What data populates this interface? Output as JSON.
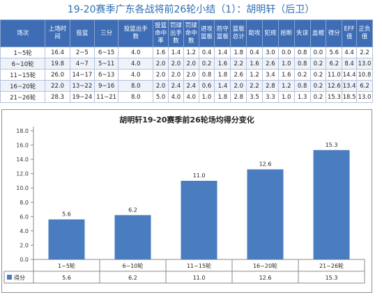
{
  "page_title": "19-20赛季广东各战将前26轮小结（1）：胡明轩（后卫）",
  "table": {
    "headers": [
      "场次",
      "上场时间",
      "投篮",
      "三分",
      "投篮出手数",
      "投篮命中率",
      "罚球出手数",
      "罚球命中数",
      "进攻篮板",
      "防守篮板",
      "篮板总计",
      "助攻",
      "犯规",
      "抢断",
      "失误",
      "盖帽",
      "得分",
      "EFF值",
      "正负值"
    ],
    "header_display": [
      "场次",
      "上场时\n间",
      "投篮",
      "三分",
      "投篮出手\n数",
      "投篮\n命中\n率",
      "罚球\n出手\n数",
      "罚球\n命中\n数",
      "进攻\n篮板",
      "防守\n篮板",
      "篮板\n总计",
      "助攻",
      "犯规",
      "抢断",
      "失误",
      "盖帽",
      "得分",
      "EFF\n值",
      "正负\n值"
    ],
    "rows": [
      [
        "1~5轮",
        "16.4",
        "2~5",
        "6~15",
        "4.0",
        "1.6",
        "1.4",
        "1.2",
        "0.4",
        "1.4",
        "1.8",
        "0.4",
        "3.0",
        "0.0",
        "0.8",
        "0.0",
        "5.6",
        "4.4",
        "2.2"
      ],
      [
        "6~10轮",
        "19.8",
        "4~7",
        "5~11",
        "4.0",
        "2.0",
        "2.0",
        "2.0",
        "0.2",
        "1.6",
        "2.2",
        "1.6",
        "2.6",
        "1.0",
        "0.8",
        "0.2",
        "6.2",
        "8.4",
        "13.0"
      ],
      [
        "11~15轮",
        "26.0",
        "14~17",
        "6~13",
        "4.0",
        "2.0",
        "2.0",
        "2.0",
        "0.8",
        "1.8",
        "2.6",
        "1.2",
        "3.4",
        "1.6",
        "0.2",
        "0.2",
        "11.0",
        "14.4",
        "10.8"
      ],
      [
        "16~20轮",
        "22.0",
        "13~22",
        "9~16",
        "8.0",
        "2.0",
        "2.4",
        "2.4",
        "0.6",
        "1.4",
        "2.0",
        "2.2",
        "2.8",
        "1.2",
        "0.8",
        "0.2",
        "12.6",
        "13.4",
        "6.2"
      ],
      [
        "21~26轮",
        "28.3",
        "19~24",
        "11~21",
        "8.0",
        "5.0",
        "4.0",
        "4.0",
        "1.0",
        "1.8",
        "2.8",
        "3.5",
        "3.3",
        "1.0",
        "1.3",
        "0.2",
        "15.3",
        "18.5",
        "13.0"
      ]
    ]
  },
  "colors": {
    "header_bg": "#3e6db5",
    "bar": "#4a7cc0",
    "title": "#2d6db3"
  },
  "chart_data": {
    "type": "bar",
    "title": "胡明轩19-20赛季前26轮场均得分变化",
    "categories": [
      "1~5轮",
      "6~10轮",
      "11~15轮",
      "16~20轮",
      "21~26轮"
    ],
    "series": [
      {
        "name": "得分",
        "values": [
          5.6,
          6.2,
          11.0,
          12.6,
          15.3
        ]
      }
    ],
    "value_labels": [
      "5.6",
      "6.2",
      "11.0",
      "12.6",
      "15.3"
    ],
    "ylim": [
      0,
      18
    ],
    "yticks": [
      "0.0",
      "2.0",
      "4.0",
      "6.0",
      "8.0",
      "10.0",
      "12.0",
      "14.0",
      "16.0",
      "18.0"
    ],
    "grid": false,
    "legend": "data-table-bottom"
  }
}
